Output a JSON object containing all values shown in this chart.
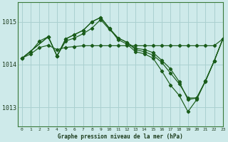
{
  "title": "Graphe pression niveau de la mer (hPa)",
  "bg_color": "#ceeaea",
  "grid_color": "#aad0d0",
  "line_color": "#1a5c1a",
  "xlim": [
    -0.5,
    23
  ],
  "ylim": [
    1012.55,
    1015.45
  ],
  "yticks": [
    1013,
    1014,
    1015
  ],
  "xticks": [
    0,
    1,
    2,
    3,
    4,
    5,
    6,
    7,
    8,
    9,
    10,
    11,
    12,
    13,
    14,
    15,
    16,
    17,
    18,
    19,
    20,
    21,
    22,
    23
  ],
  "series": [
    {
      "x": [
        0,
        1,
        2,
        3,
        4,
        5,
        6,
        7,
        8,
        9,
        10,
        11,
        12,
        13,
        14,
        15,
        16,
        17,
        18,
        19,
        20,
        21,
        22,
        23
      ],
      "y": [
        1014.15,
        1014.25,
        1014.4,
        1014.45,
        1014.35,
        1014.4,
        1014.42,
        1014.44,
        1014.44,
        1014.44,
        1014.44,
        1014.44,
        1014.44,
        1014.44,
        1014.44,
        1014.44,
        1014.44,
        1014.44,
        1014.44,
        1014.44,
        1014.44,
        1014.44,
        1014.44,
        1014.6
      ]
    },
    {
      "x": [
        0,
        1,
        2,
        3,
        4,
        5,
        6,
        7,
        8,
        9,
        10,
        11,
        12,
        13,
        14,
        15,
        16,
        17,
        18,
        19,
        20,
        21,
        22,
        23
      ],
      "y": [
        1014.15,
        1014.3,
        1014.55,
        1014.65,
        1014.2,
        1014.55,
        1014.62,
        1014.72,
        1014.85,
        1015.05,
        1014.82,
        1014.62,
        1014.52,
        1014.38,
        1014.35,
        1014.28,
        1014.1,
        1013.9,
        1013.6,
        1013.18,
        1013.22,
        1013.62,
        1014.08,
        1014.6
      ]
    },
    {
      "x": [
        0,
        3,
        4,
        5,
        6,
        7,
        8,
        9,
        10,
        11,
        12,
        13,
        14,
        15,
        16,
        17,
        18,
        19,
        20,
        21,
        22,
        23
      ],
      "y": [
        1014.15,
        1014.65,
        1014.2,
        1014.6,
        1014.7,
        1014.8,
        1015.0,
        1015.1,
        1014.85,
        1014.62,
        1014.52,
        1014.35,
        1014.3,
        1014.22,
        1014.05,
        1013.8,
        1013.55,
        1013.22,
        1013.22,
        1013.6,
        1014.08,
        1014.6
      ]
    },
    {
      "x": [
        0,
        3,
        4,
        5,
        6,
        7,
        8,
        9,
        10,
        11,
        12,
        13,
        14,
        15,
        16,
        17,
        18,
        19,
        20,
        21,
        22,
        23
      ],
      "y": [
        1014.15,
        1014.65,
        1014.2,
        1014.6,
        1014.7,
        1014.8,
        1015.0,
        1015.1,
        1014.85,
        1014.58,
        1014.48,
        1014.3,
        1014.25,
        1014.15,
        1013.85,
        1013.52,
        1013.28,
        1012.9,
        1013.18,
        1013.62,
        1014.08,
        1014.6
      ]
    }
  ]
}
